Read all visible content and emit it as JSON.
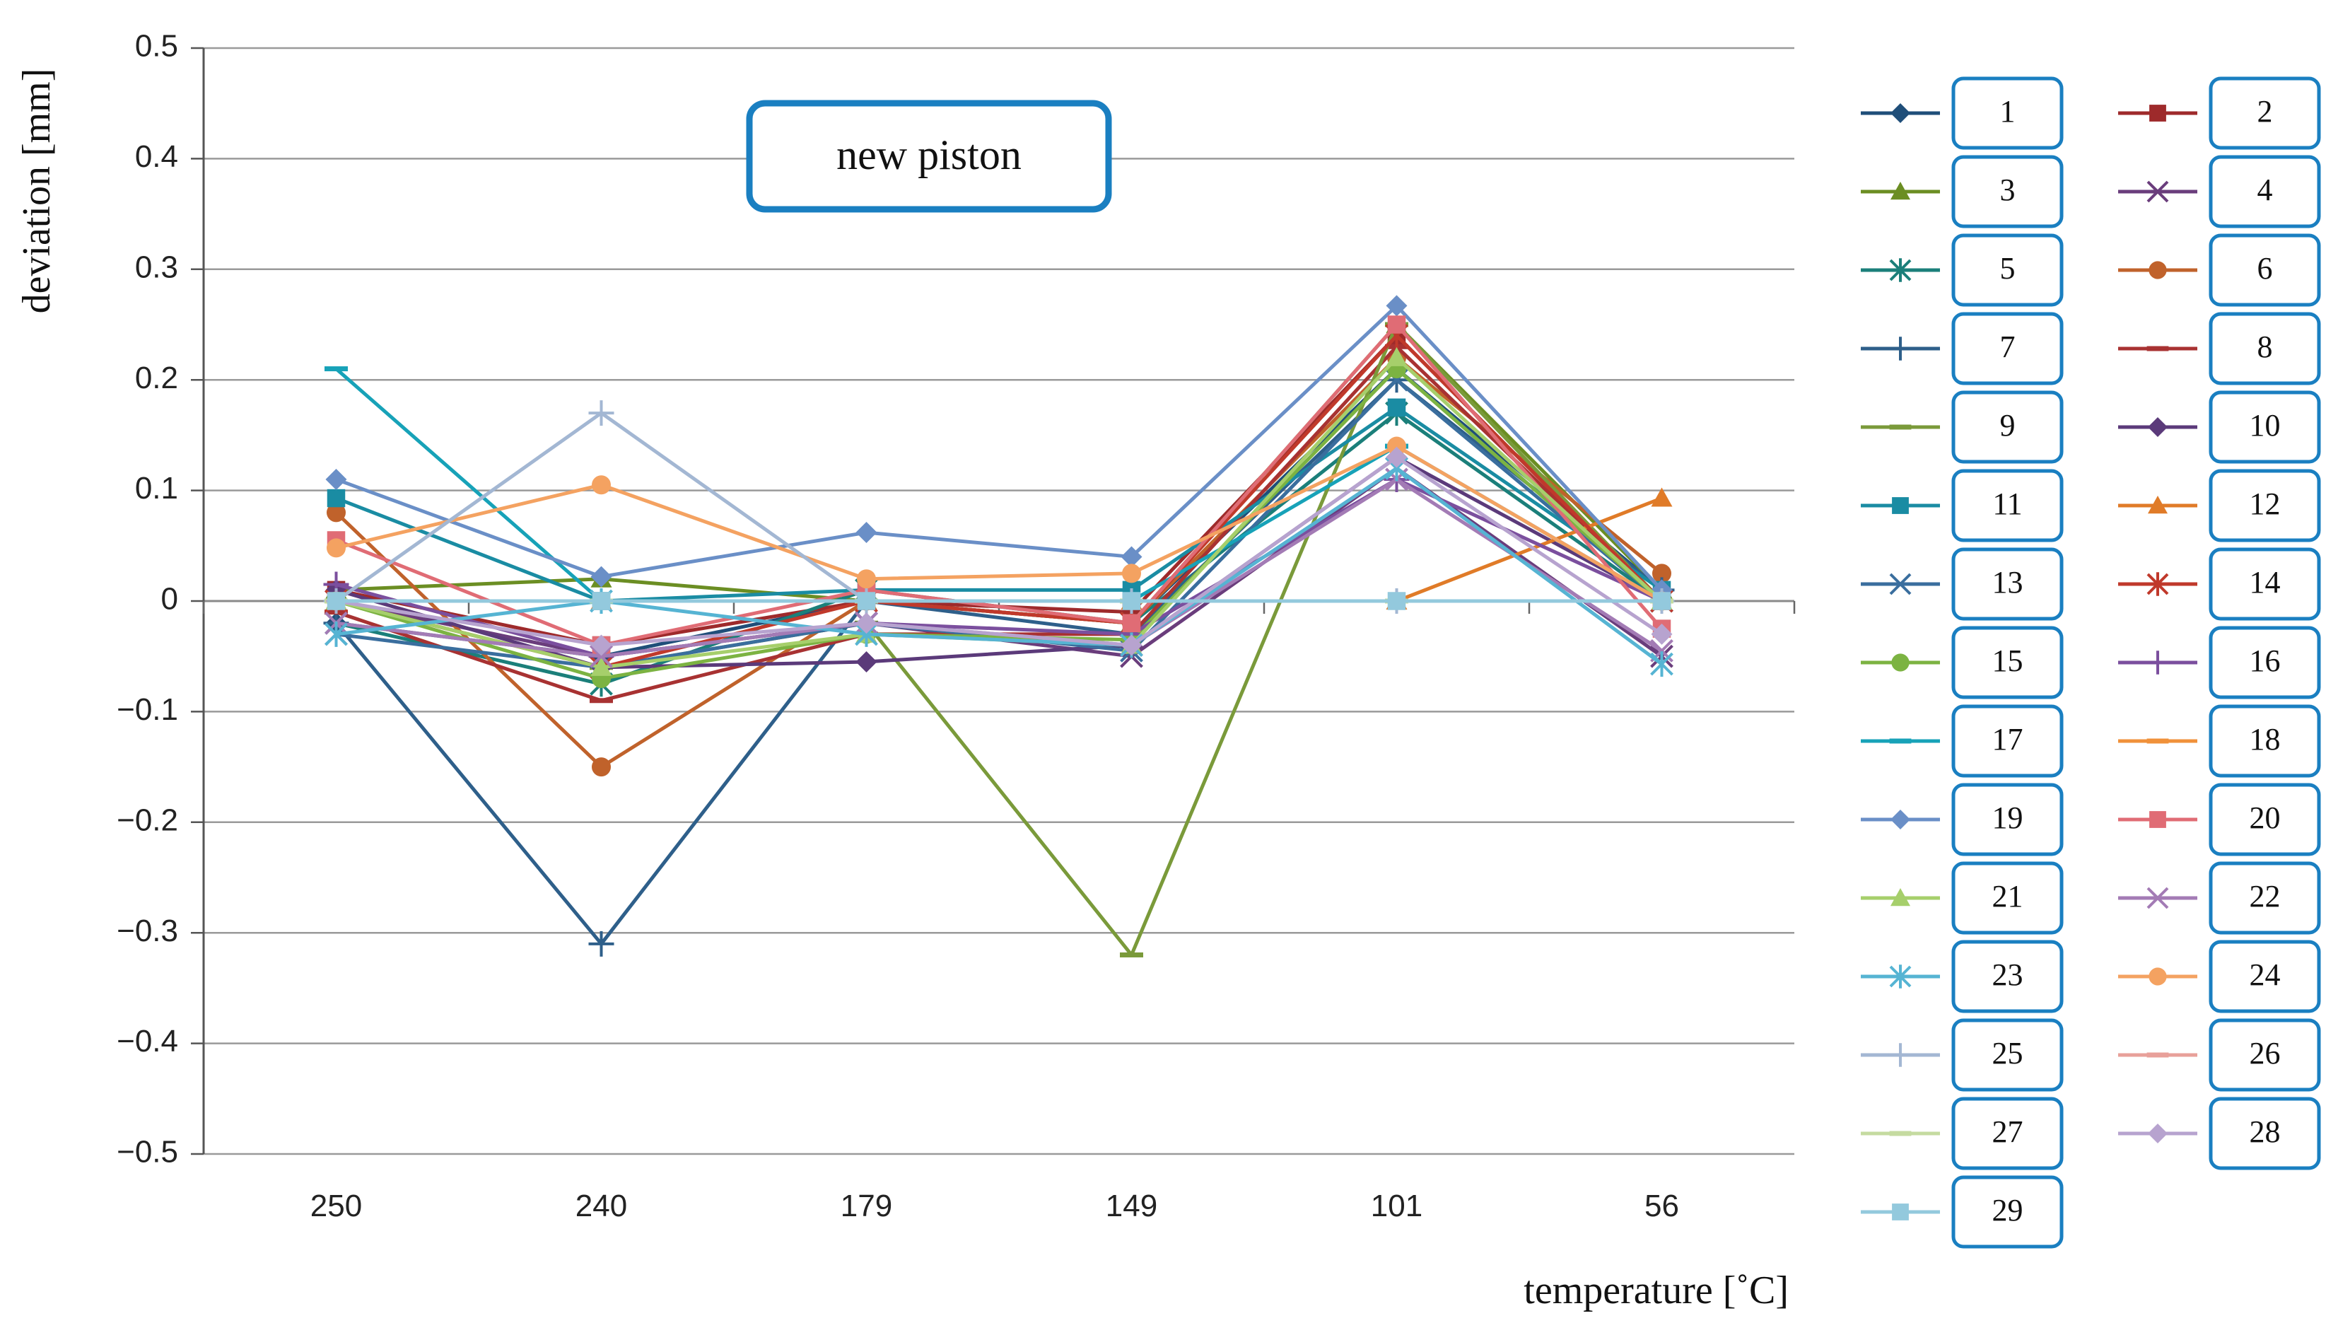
{
  "chart_data": {
    "type": "line",
    "title": "",
    "annotation": "new piston",
    "xlabel": "temperature [˚C]",
    "ylabel": "deviation [mm]",
    "categories": [
      "250",
      "240",
      "179",
      "149",
      "101",
      "56"
    ],
    "ylim": [
      -0.5,
      0.5
    ],
    "yticks": [
      0.5,
      0.4,
      0.3,
      0.2,
      0.1,
      0,
      -0.1,
      -0.2,
      -0.3,
      -0.4,
      -0.5
    ],
    "ytick_labels": [
      "0.5",
      "0.4",
      "0.3",
      "0.2",
      "0.1",
      "0",
      "−0.1",
      "−0.2",
      "−0.3",
      "−0.4",
      "−0.5"
    ],
    "grid": true,
    "legend_position": "right",
    "series": [
      {
        "name": "1",
        "color": "#1f4e79",
        "marker": "diamond",
        "values": [
          -0.02,
          -0.05,
          0.0,
          -0.02,
          0.21,
          0.01
        ]
      },
      {
        "name": "2",
        "color": "#9e2a2b",
        "marker": "square",
        "values": [
          0.01,
          -0.04,
          0.0,
          -0.01,
          0.24,
          0.0
        ]
      },
      {
        "name": "3",
        "color": "#6b8e23",
        "marker": "triangle",
        "values": [
          0.01,
          0.02,
          0.0,
          -0.02,
          0.25,
          0.01
        ]
      },
      {
        "name": "4",
        "color": "#6a3d7c",
        "marker": "x",
        "values": [
          0.0,
          -0.05,
          -0.02,
          -0.05,
          0.12,
          -0.05
        ]
      },
      {
        "name": "5",
        "color": "#1b7f7a",
        "marker": "asterisk",
        "values": [
          -0.02,
          -0.075,
          0.01,
          -0.02,
          0.17,
          0.0
        ]
      },
      {
        "name": "6",
        "color": "#c0622b",
        "marker": "circle",
        "values": [
          0.08,
          -0.15,
          0.0,
          -0.02,
          0.22,
          0.025
        ]
      },
      {
        "name": "7",
        "color": "#2e5f8a",
        "marker": "plus",
        "values": [
          -0.02,
          -0.31,
          0.0,
          -0.03,
          0.2,
          0.01
        ]
      },
      {
        "name": "8",
        "color": "#a83232",
        "marker": "dash",
        "values": [
          -0.01,
          -0.09,
          -0.03,
          -0.03,
          0.23,
          0.0
        ]
      },
      {
        "name": "9",
        "color": "#7a9a3a",
        "marker": "dash",
        "values": [
          0.0,
          -0.06,
          -0.02,
          -0.32,
          0.25,
          0.0
        ]
      },
      {
        "name": "10",
        "color": "#5b3a7a",
        "marker": "diamond",
        "values": [
          0.01,
          -0.06,
          -0.055,
          -0.04,
          0.13,
          0.0
        ]
      },
      {
        "name": "11",
        "color": "#1a8ca3",
        "marker": "square",
        "values": [
          0.093,
          0.0,
          0.01,
          0.01,
          0.175,
          0.01
        ]
      },
      {
        "name": "12",
        "color": "#e07b28",
        "marker": "triangle",
        "values": [
          0.0,
          0.0,
          0.0,
          0.0,
          0.0,
          0.093
        ]
      },
      {
        "name": "13",
        "color": "#3a6e9e",
        "marker": "x",
        "values": [
          -0.03,
          -0.06,
          -0.02,
          -0.045,
          0.2,
          0.0
        ]
      },
      {
        "name": "14",
        "color": "#c0392b",
        "marker": "asterisk",
        "values": [
          0.0,
          -0.06,
          0.0,
          -0.02,
          0.24,
          0.0
        ]
      },
      {
        "name": "15",
        "color": "#7cb342",
        "marker": "circle",
        "values": [
          0.0,
          -0.07,
          -0.03,
          -0.035,
          0.21,
          0.0
        ]
      },
      {
        "name": "16",
        "color": "#7b4f9e",
        "marker": "plus",
        "values": [
          0.015,
          -0.05,
          -0.02,
          -0.03,
          0.11,
          0.0
        ]
      },
      {
        "name": "17",
        "color": "#17a2b8",
        "marker": "dash",
        "values": [
          0.21,
          0.0,
          0.0,
          0.0,
          0.14,
          0.0
        ]
      },
      {
        "name": "18",
        "color": "#f0913a",
        "marker": "dash",
        "values": [
          0.0,
          0.0,
          0.0,
          0.0,
          0.0,
          0.0
        ]
      },
      {
        "name": "19",
        "color": "#6a8fc7",
        "marker": "diamond",
        "values": [
          0.11,
          0.022,
          0.062,
          0.04,
          0.267,
          0.01
        ]
      },
      {
        "name": "20",
        "color": "#e06c75",
        "marker": "square",
        "values": [
          0.055,
          -0.04,
          0.01,
          -0.02,
          0.25,
          -0.025
        ]
      },
      {
        "name": "21",
        "color": "#a6cf6b",
        "marker": "triangle",
        "values": [
          0.0,
          -0.06,
          -0.03,
          -0.04,
          0.22,
          0.0
        ]
      },
      {
        "name": "22",
        "color": "#a37bb5",
        "marker": "x",
        "values": [
          -0.02,
          -0.05,
          -0.02,
          -0.04,
          0.11,
          -0.045
        ]
      },
      {
        "name": "23",
        "color": "#56b4d3",
        "marker": "asterisk",
        "values": [
          -0.03,
          0.0,
          -0.03,
          -0.04,
          0.12,
          -0.057
        ]
      },
      {
        "name": "24",
        "color": "#f4a261",
        "marker": "circle",
        "values": [
          0.048,
          0.105,
          0.02,
          0.025,
          0.14,
          0.0
        ]
      },
      {
        "name": "25",
        "color": "#a3b7d3",
        "marker": "plus",
        "values": [
          0.0,
          0.17,
          0.0,
          0.0,
          0.0,
          0.0
        ]
      },
      {
        "name": "26",
        "color": "#e8a09a",
        "marker": "dash",
        "values": [
          0.0,
          0.0,
          0.0,
          0.0,
          0.0,
          0.0
        ]
      },
      {
        "name": "27",
        "color": "#c5dba0",
        "marker": "dash",
        "values": [
          0.0,
          0.0,
          0.0,
          0.0,
          0.0,
          0.0
        ]
      },
      {
        "name": "28",
        "color": "#b7a3cf",
        "marker": "diamond",
        "values": [
          0.0,
          -0.04,
          -0.02,
          -0.04,
          0.13,
          -0.03
        ]
      },
      {
        "name": "29",
        "color": "#93c9dd",
        "marker": "square",
        "values": [
          0.0,
          0.0,
          0.0,
          0.0,
          0.0,
          0.0
        ]
      }
    ]
  }
}
